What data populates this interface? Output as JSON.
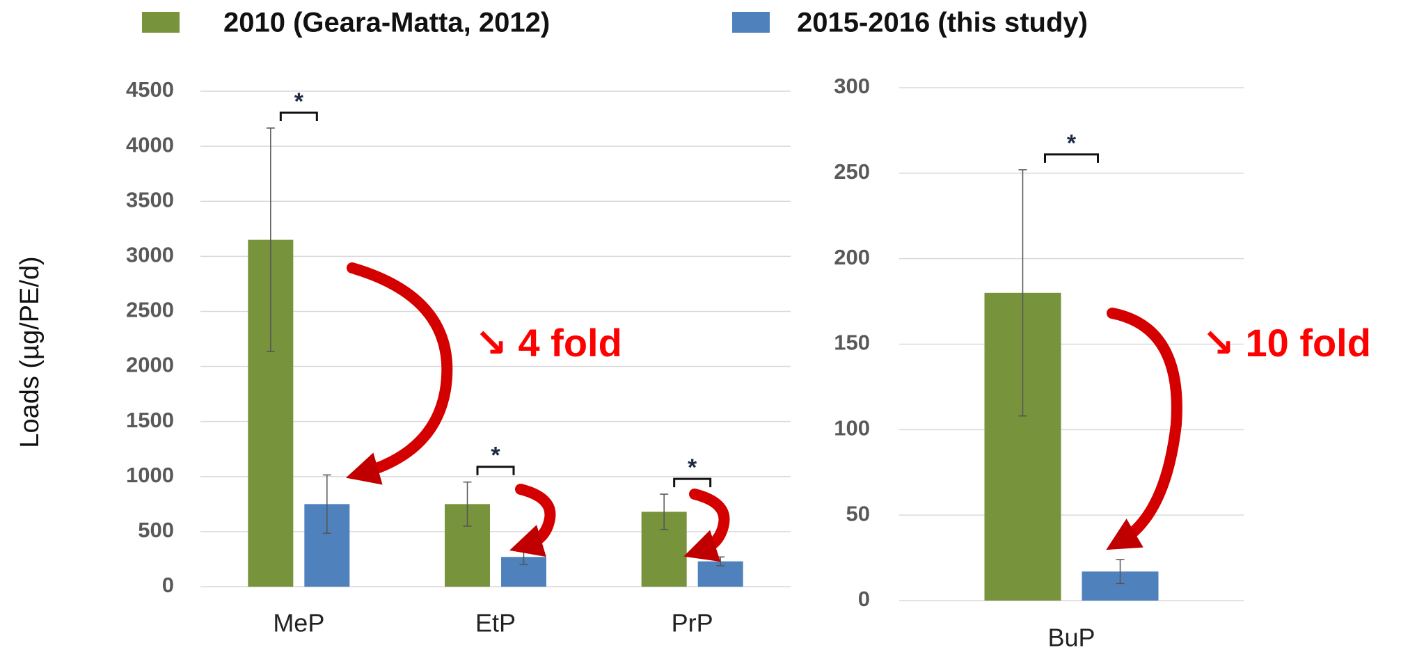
{
  "chart_data": [
    {
      "type": "bar",
      "y_label": "Loads (µg/PE/d)",
      "categories": [
        "MeP",
        "EtP",
        "PrP"
      ],
      "series": [
        {
          "name": "2010 (Geara-Matta, 2012)",
          "color": "#77933c",
          "values": [
            3150,
            750,
            680
          ],
          "errors": [
            1015,
            200,
            160
          ]
        },
        {
          "name": "2015-2016 (this study)",
          "color": "#4f81bd",
          "values": [
            750,
            270,
            230
          ],
          "errors": [
            265,
            70,
            40
          ]
        }
      ],
      "significance_labels": [
        "*",
        "*",
        "*"
      ],
      "fold_label": "↘ 4 fold",
      "ylim": [
        0,
        4500
      ],
      "yticks": [
        0,
        500,
        1000,
        1500,
        2000,
        2500,
        3000,
        3500,
        4000,
        4500
      ],
      "grid": true
    },
    {
      "type": "bar",
      "categories": [
        "BuP"
      ],
      "series": [
        {
          "color": "#77933c",
          "values": [
            180
          ],
          "errors": [
            72
          ]
        },
        {
          "color": "#4f81bd",
          "values": [
            17
          ],
          "errors": [
            7
          ]
        }
      ],
      "significance_labels": [
        "*"
      ],
      "fold_label": "↘ 10 fold",
      "ylim": [
        0,
        300
      ],
      "yticks": [
        0,
        50,
        100,
        150,
        200,
        250,
        300
      ],
      "grid": true
    }
  ]
}
